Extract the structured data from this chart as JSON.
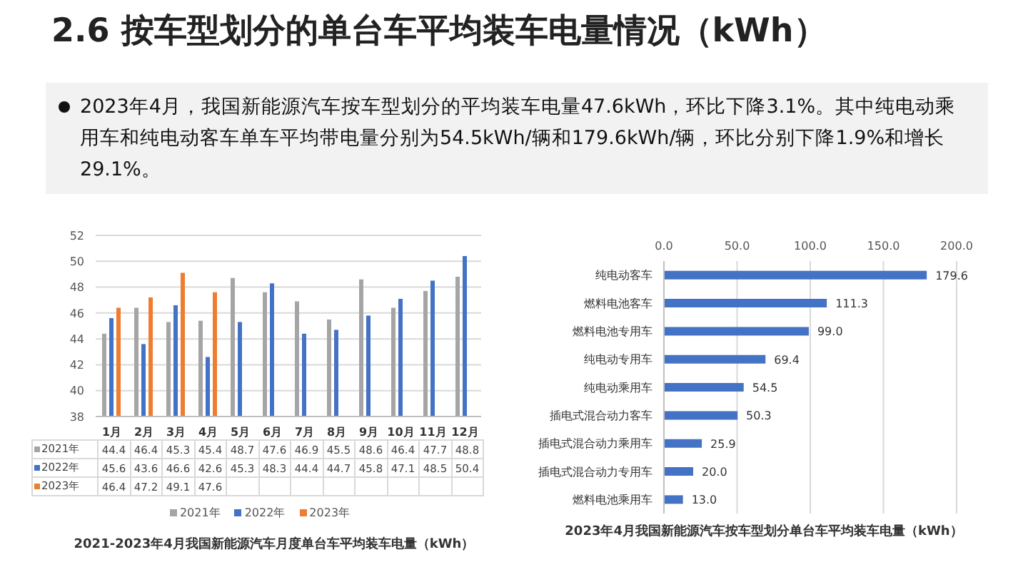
{
  "chart_data": [
    {
      "type": "bar",
      "title": "2021-2023年4月我国新能源汽车月度单台车平均装车电量（kWh）",
      "annotations": [
        "2.6 按车型划分的单台车平均装车电量情况（kWh）",
        "2023年4月，我国新能源汽车按车型划分的平均装车电量47.6kWh，环比下降3.1%。其中纯电动乘用车和纯电动客车单车平均带电量分别为54.5kWh/辆和179.6kWh/辆，环比分别下降1.9%和增长29.1%。"
      ],
      "categories": [
        "1月",
        "2月",
        "3月",
        "4月",
        "5月",
        "6月",
        "7月",
        "8月",
        "9月",
        "10月",
        "11月",
        "12月"
      ],
      "series": [
        {
          "name": "2021年",
          "color": "#a5a5a5",
          "values": [
            44.4,
            46.4,
            45.3,
            45.4,
            48.7,
            47.6,
            46.9,
            45.5,
            48.6,
            46.4,
            47.7,
            48.8
          ]
        },
        {
          "name": "2022年",
          "color": "#4472c4",
          "values": [
            45.6,
            43.6,
            46.6,
            42.6,
            45.3,
            48.3,
            44.4,
            44.7,
            45.8,
            47.1,
            48.5,
            50.4
          ]
        },
        {
          "name": "2023年",
          "color": "#ed7d31",
          "values": [
            46.4,
            47.2,
            49.1,
            47.6,
            null,
            null,
            null,
            null,
            null,
            null,
            null,
            null
          ]
        }
      ],
      "ylim": [
        38,
        52
      ],
      "yticks": [
        38,
        40,
        42,
        44,
        46,
        48,
        50,
        52
      ],
      "grid": "y",
      "legend": "bottom",
      "data_labels": true
    },
    {
      "type": "bar",
      "orientation": "horizontal",
      "title": "2023年4月我国新能源汽车按车型划分单台车平均装车电量（kWh）",
      "categories": [
        "纯电动客车",
        "燃料电池客车",
        "燃料电池专用车",
        "纯电动专用车",
        "纯电动乘用车",
        "插电式混合动力客车",
        "插电式混合动力乘用车",
        "插电式混合动力专用车",
        "燃料电池乘用车"
      ],
      "values": [
        179.6,
        111.3,
        99.0,
        69.4,
        54.5,
        50.3,
        25.9,
        20.0,
        13.0
      ],
      "color": "#4472c4",
      "value_labels": [
        "179.6",
        "111.3",
        "99.0",
        "69.4",
        "54.5",
        "50.3",
        "25.9",
        "20.0",
        "13.0"
      ],
      "xlim": [
        0,
        200
      ],
      "xticks": [
        {
          "value": 0,
          "label": "0.0"
        },
        {
          "value": 50,
          "label": "50.0"
        },
        {
          "value": 100,
          "label": "100.0"
        },
        {
          "value": 150,
          "label": "150.0"
        },
        {
          "value": 200,
          "label": "200.0"
        }
      ],
      "grid": "x"
    }
  ]
}
